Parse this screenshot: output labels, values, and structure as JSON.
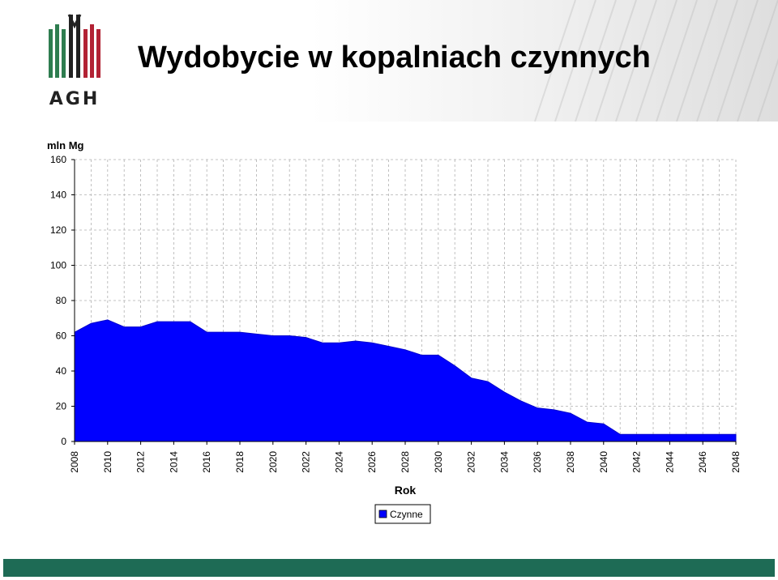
{
  "header": {
    "title": "Wydobycie w kopalniach czynnych",
    "logo_text": "AGH"
  },
  "colors": {
    "area_fill": "#0000ff",
    "area_stroke": "#0000cc",
    "footer": "#1e6b55",
    "logo_green": "#2e7d4f",
    "logo_red": "#b22234"
  },
  "chart_data": {
    "type": "area",
    "title": "",
    "xlabel": "Rok",
    "ylabel": "mln Mg",
    "xlim": [
      2008,
      2048
    ],
    "ylim": [
      0,
      160
    ],
    "x_ticks": [
      "2008",
      "2010",
      "2012",
      "2014",
      "2016",
      "2018",
      "2020",
      "2022",
      "2024",
      "2026",
      "2028",
      "2030",
      "2032",
      "2034",
      "2036",
      "2038",
      "2040",
      "2042",
      "2044",
      "2046",
      "2048"
    ],
    "y_ticks": [
      "0",
      "20",
      "40",
      "60",
      "80",
      "100",
      "120",
      "140",
      "160"
    ],
    "grid": true,
    "legend": "bottom-center",
    "series": [
      {
        "name": "Czynne",
        "x": [
          2008,
          2009,
          2010,
          2011,
          2012,
          2013,
          2014,
          2015,
          2016,
          2017,
          2018,
          2019,
          2020,
          2021,
          2022,
          2023,
          2024,
          2025,
          2026,
          2027,
          2028,
          2029,
          2030,
          2031,
          2032,
          2033,
          2034,
          2035,
          2036,
          2037,
          2038,
          2039,
          2040,
          2041,
          2042,
          2043,
          2044,
          2045,
          2046,
          2047,
          2048
        ],
        "values": [
          62,
          67,
          69,
          65,
          65,
          68,
          68,
          68,
          62,
          62,
          62,
          61,
          60,
          60,
          59,
          56,
          56,
          57,
          56,
          54,
          52,
          49,
          49,
          43,
          36,
          34,
          28,
          23,
          19,
          18,
          16,
          11,
          10,
          4,
          4,
          4,
          4,
          4,
          4,
          4,
          4
        ]
      }
    ]
  }
}
